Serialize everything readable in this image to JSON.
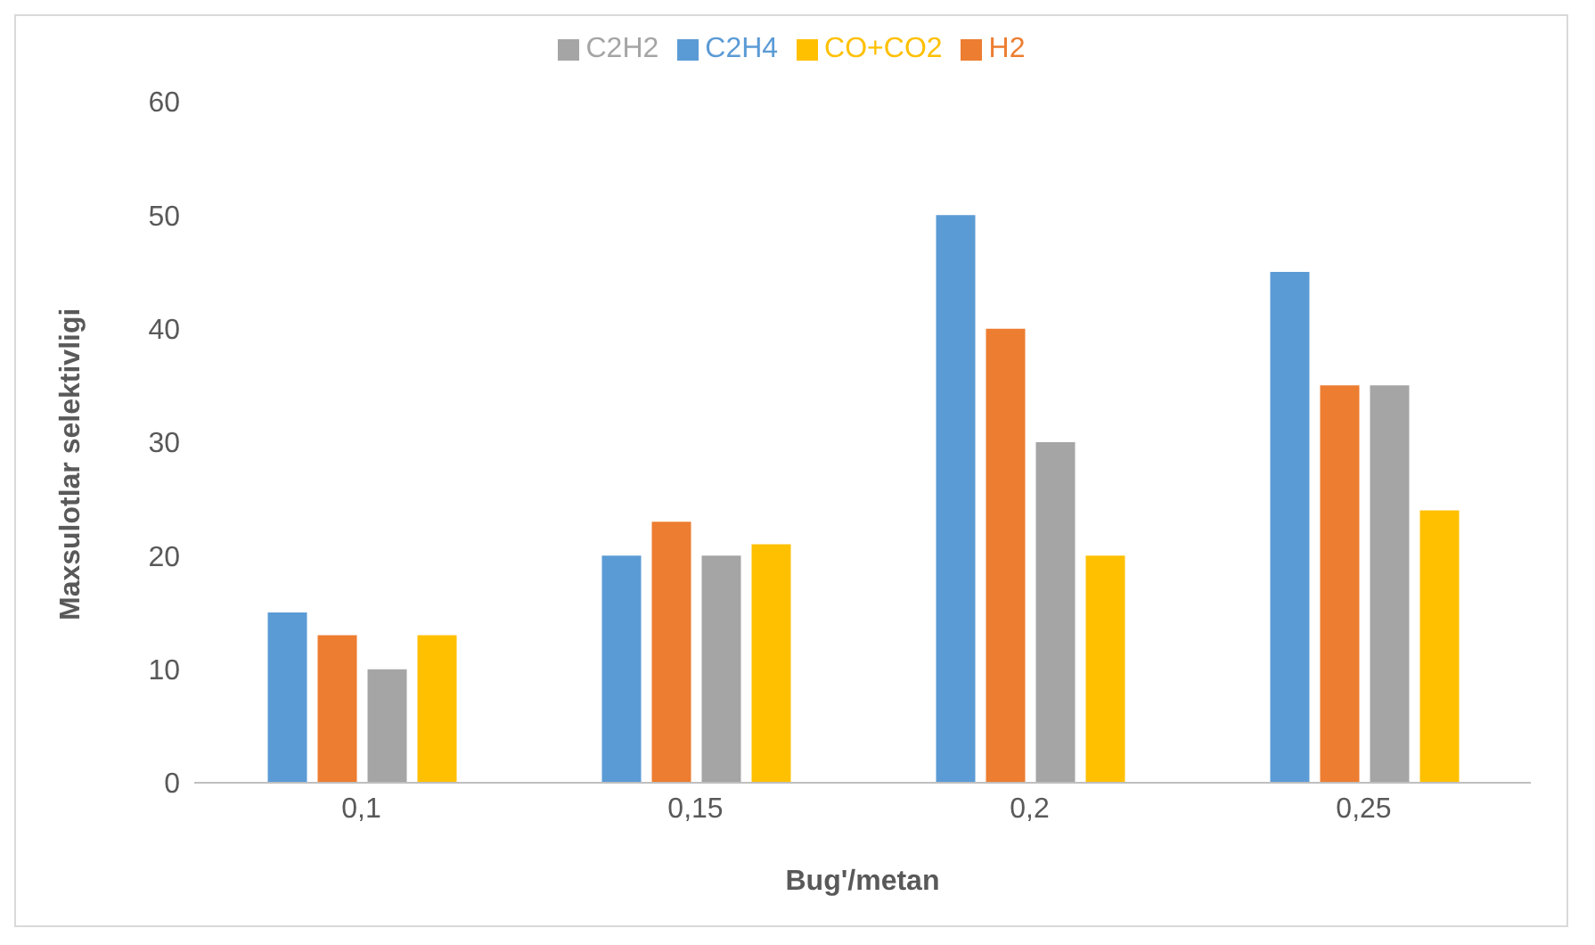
{
  "chart_data": {
    "type": "bar",
    "xlabel": "Bug'/metan",
    "ylabel": "Maxsulotlar selektivligi",
    "categories": [
      "0,1",
      "0,15",
      "0,2",
      "0,25"
    ],
    "series": [
      {
        "name": "C2H4",
        "color": "#5b9bd5",
        "values": [
          15,
          20,
          50,
          45
        ]
      },
      {
        "name": "H2",
        "color": "#ed7d31",
        "values": [
          13,
          23,
          40,
          35
        ]
      },
      {
        "name": "C2H2",
        "color": "#a5a5a5",
        "values": [
          10,
          20,
          30,
          35
        ]
      },
      {
        "name": "CO+CO2",
        "color": "#ffc000",
        "values": [
          13,
          21,
          20,
          24
        ]
      }
    ],
    "ylim": [
      0,
      60
    ],
    "yticks": [
      0,
      10,
      20,
      30,
      40,
      50,
      60
    ],
    "grid": false,
    "legend": "top"
  }
}
